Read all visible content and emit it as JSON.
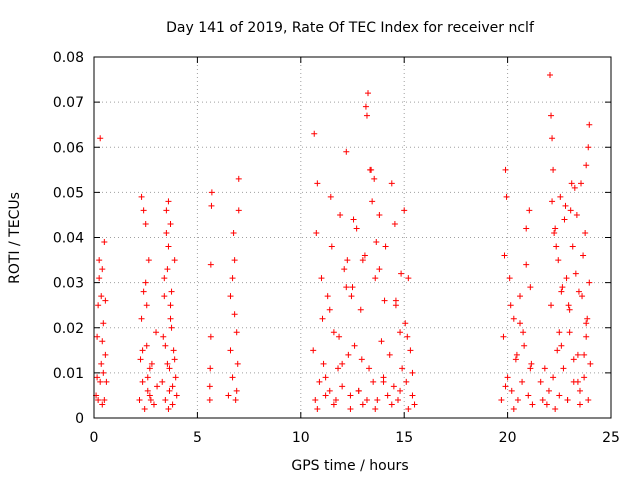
{
  "chart_data": {
    "type": "scatter",
    "title": "Day 141 of 2019, Rate Of TEC Index for receiver nclf",
    "xlabel": "GPS time / hours",
    "ylabel": "ROTI / TECUs",
    "xlim": [
      0,
      25
    ],
    "ylim": [
      0,
      0.08
    ],
    "grid": true,
    "marker": "+",
    "color": "#ff0000",
    "x_ticks": [
      0,
      5,
      10,
      15,
      20,
      25
    ],
    "x_tick_labels": [
      "0",
      "5",
      "10",
      "15",
      "20",
      "25"
    ],
    "y_ticks": [
      0,
      0.01,
      0.02,
      0.03,
      0.04,
      0.05,
      0.06,
      0.07,
      0.08
    ],
    "y_tick_labels": [
      "0",
      "0.01",
      "0.02",
      "0.03",
      "0.04",
      "0.05",
      "0.06",
      "0.07",
      "0.08"
    ],
    "series": [
      {
        "name": "ROTI",
        "x": [
          0.1,
          0.15,
          0.2,
          0.2,
          0.25,
          0.3,
          0.3,
          0.35,
          0.4,
          0.4,
          0.45,
          0.5,
          0.5,
          0.55,
          0.6,
          0.25,
          0.35,
          0.45,
          0.55,
          0.15,
          0.4,
          2.2,
          2.25,
          2.3,
          2.35,
          2.4,
          2.45,
          2.5,
          2.55,
          2.6,
          2.65,
          2.7,
          2.8,
          2.9,
          3.0,
          3.05,
          2.3,
          2.5,
          2.7,
          2.4,
          2.6,
          2.35,
          2.55,
          2.75,
          3.3,
          3.35,
          3.4,
          3.45,
          3.5,
          3.55,
          3.6,
          3.65,
          3.7,
          3.75,
          3.8,
          3.85,
          3.9,
          3.95,
          4.0,
          3.5,
          3.6,
          3.7,
          3.45,
          3.65,
          3.8,
          3.55,
          3.75,
          3.4,
          3.9,
          3.6,
          3.7,
          5.6,
          5.62,
          5.65,
          5.7,
          5.65,
          5.68,
          5.6,
          6.5,
          6.6,
          6.7,
          6.8,
          6.9,
          7.0,
          6.75,
          6.85,
          6.95,
          6.6,
          6.7,
          6.9,
          6.8,
          7.0,
          10.6,
          10.7,
          10.8,
          10.9,
          11.0,
          11.1,
          11.2,
          11.3,
          11.4,
          11.5,
          11.6,
          11.7,
          11.8,
          11.9,
          12.0,
          12.1,
          12.2,
          12.3,
          12.4,
          12.5,
          12.6,
          12.7,
          12.8,
          12.9,
          13.0,
          13.1,
          13.2,
          13.3,
          13.4,
          13.5,
          13.6,
          13.7,
          13.8,
          13.9,
          14.0,
          14.1,
          14.2,
          14.3,
          14.4,
          14.5,
          14.6,
          14.7,
          14.8,
          14.9,
          15.0,
          15.1,
          15.2,
          15.3,
          15.4,
          15.5,
          10.65,
          10.75,
          11.05,
          11.45,
          11.85,
          12.25,
          12.45,
          12.55,
          12.95,
          13.15,
          13.25,
          13.35,
          13.45,
          13.55,
          13.65,
          14.05,
          14.55,
          14.85,
          15.05,
          15.15,
          10.8,
          11.2,
          11.6,
          12.0,
          12.4,
          12.8,
          13.2,
          13.6,
          14.0,
          14.4,
          14.8,
          15.2,
          11.4,
          12.2,
          13.0,
          13.8,
          14.6,
          15.4,
          19.7,
          19.8,
          19.9,
          20.0,
          20.1,
          20.2,
          20.3,
          20.4,
          20.5,
          20.6,
          20.7,
          20.8,
          20.9,
          21.0,
          21.1,
          21.2,
          19.85,
          19.95,
          20.15,
          20.45,
          20.75,
          21.05,
          21.1,
          20.9,
          20.3,
          19.9,
          20.6,
          21.15,
          21.6,
          21.7,
          21.8,
          21.9,
          22.0,
          22.1,
          22.2,
          22.3,
          22.4,
          22.5,
          22.6,
          22.7,
          22.8,
          22.9,
          23.0,
          23.1,
          23.2,
          23.3,
          23.4,
          23.5,
          23.6,
          23.7,
          23.8,
          23.9,
          24.0,
          22.05,
          22.1,
          22.15,
          22.15,
          22.2,
          22.25,
          22.35,
          22.45,
          22.55,
          22.65,
          22.75,
          22.85,
          22.95,
          23.05,
          23.15,
          23.25,
          23.35,
          23.45,
          23.55,
          23.65,
          23.75,
          23.85,
          23.95,
          23.9,
          23.95,
          23.8,
          22.3,
          22.6,
          22.9,
          23.2,
          23.5,
          23.8,
          22.5,
          23.0,
          23.4,
          23.7
        ],
        "y": [
          0.005,
          0.018,
          0.025,
          0.004,
          0.035,
          0.062,
          0.008,
          0.027,
          0.003,
          0.017,
          0.01,
          0.004,
          0.039,
          0.026,
          0.008,
          0.031,
          0.012,
          0.021,
          0.014,
          0.009,
          0.033,
          0.004,
          0.013,
          0.049,
          0.008,
          0.028,
          0.002,
          0.043,
          0.016,
          0.009,
          0.035,
          0.005,
          0.012,
          0.003,
          0.019,
          0.007,
          0.022,
          0.03,
          0.011,
          0.046,
          0.006,
          0.015,
          0.025,
          0.004,
          0.008,
          0.018,
          0.031,
          0.004,
          0.041,
          0.012,
          0.048,
          0.006,
          0.022,
          0.028,
          0.003,
          0.015,
          0.035,
          0.009,
          0.005,
          0.046,
          0.038,
          0.025,
          0.016,
          0.011,
          0.007,
          0.033,
          0.02,
          0.027,
          0.013,
          0.002,
          0.043,
          0.004,
          0.011,
          0.018,
          0.05,
          0.034,
          0.047,
          0.007,
          0.005,
          0.015,
          0.031,
          0.023,
          0.006,
          0.053,
          0.041,
          0.004,
          0.012,
          0.027,
          0.009,
          0.019,
          0.035,
          0.046,
          0.015,
          0.004,
          0.052,
          0.008,
          0.031,
          0.012,
          0.005,
          0.027,
          0.006,
          0.038,
          0.019,
          0.004,
          0.011,
          0.045,
          0.007,
          0.033,
          0.059,
          0.014,
          0.005,
          0.029,
          0.016,
          0.042,
          0.006,
          0.024,
          0.003,
          0.036,
          0.067,
          0.011,
          0.055,
          0.008,
          0.031,
          0.004,
          0.045,
          0.017,
          0.009,
          0.038,
          0.005,
          0.014,
          0.052,
          0.007,
          0.026,
          0.004,
          0.019,
          0.011,
          0.046,
          0.008,
          0.031,
          0.015,
          0.005,
          0.003,
          0.063,
          0.041,
          0.022,
          0.049,
          0.018,
          0.035,
          0.027,
          0.044,
          0.013,
          0.069,
          0.072,
          0.055,
          0.048,
          0.053,
          0.039,
          0.026,
          0.043,
          0.032,
          0.021,
          0.018,
          0.002,
          0.009,
          0.003,
          0.012,
          0.002,
          0.006,
          0.004,
          0.002,
          0.008,
          0.003,
          0.006,
          0.002,
          0.024,
          0.029,
          0.035,
          0.033,
          0.025,
          0.01,
          0.004,
          0.018,
          0.055,
          0.009,
          0.031,
          0.006,
          0.022,
          0.013,
          0.004,
          0.027,
          0.008,
          0.016,
          0.042,
          0.005,
          0.011,
          0.003,
          0.036,
          0.049,
          0.025,
          0.014,
          0.019,
          0.046,
          0.029,
          0.034,
          0.002,
          0.007,
          0.021,
          0.012,
          0.008,
          0.004,
          0.011,
          0.003,
          0.006,
          0.025,
          0.009,
          0.042,
          0.015,
          0.005,
          0.028,
          0.011,
          0.047,
          0.004,
          0.019,
          0.052,
          0.008,
          0.032,
          0.014,
          0.006,
          0.027,
          0.009,
          0.018,
          0.004,
          0.012,
          0.076,
          0.067,
          0.062,
          0.048,
          0.055,
          0.041,
          0.038,
          0.035,
          0.049,
          0.029,
          0.044,
          0.031,
          0.025,
          0.046,
          0.038,
          0.051,
          0.045,
          0.028,
          0.052,
          0.036,
          0.041,
          0.022,
          0.03,
          0.06,
          0.065,
          0.056,
          0.002,
          0.016,
          0.004,
          0.013,
          0.003,
          0.021,
          0.019,
          0.024,
          0.008,
          0.014
        ]
      }
    ]
  }
}
